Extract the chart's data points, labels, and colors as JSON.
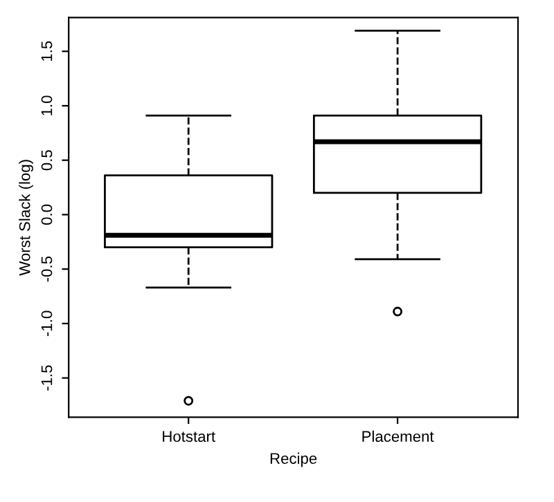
{
  "chart_data": {
    "type": "box",
    "xlabel": "Recipe",
    "ylabel": "Worst Slack (log)",
    "categories": [
      "Hotstart",
      "Placement"
    ],
    "boxes": [
      {
        "low": -0.67,
        "q1": -0.3,
        "median": -0.19,
        "q3": 0.36,
        "high": 0.91,
        "outliers": [
          -1.71
        ]
      },
      {
        "low": -0.41,
        "q1": 0.2,
        "median": 0.67,
        "q3": 0.91,
        "high": 1.69,
        "outliers": [
          -0.89
        ]
      }
    ],
    "color": "#000000",
    "ylim": [
      -1.86,
      1.81
    ],
    "yticks": [
      -1.5,
      {
        "value": -1,
        "label": "-1.0"
      },
      -0.5,
      {
        "value": 0,
        "label": "0.0"
      },
      0.5,
      {
        "value": 1,
        "label": "1.0"
      },
      1.5
    ],
    "grid": false,
    "legend": false
  }
}
